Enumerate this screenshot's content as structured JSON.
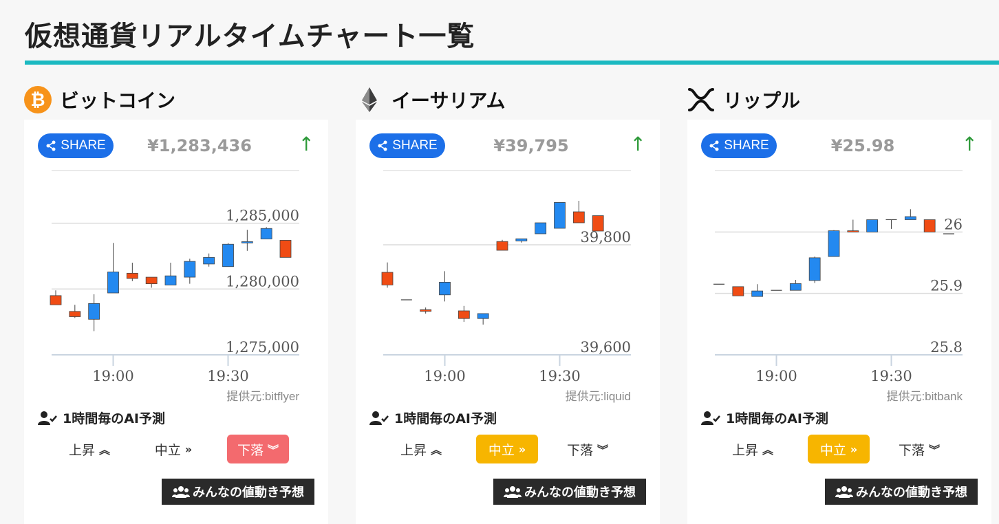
{
  "page": {
    "title": "仮想通貨リアルタイムチャート一覧"
  },
  "labels": {
    "share": "SHARE",
    "ai": "1時間毎のAI予測",
    "rise": "上昇",
    "neutral": "中立",
    "fall": "下落",
    "minna": "みんなの値動き予想"
  },
  "colors": {
    "accent": "#1bb9c1",
    "share": "#1c6fe8",
    "up_candle": "#2389f0",
    "down_candle": "#f04c14",
    "fall_active": "#f36a6e",
    "neutral_active": "#f7b500"
  },
  "coins": [
    {
      "name": "ビットコイン",
      "icon": "bitcoin-icon",
      "price": "¥1,283,436",
      "trend": "↑",
      "provider": "提供元:bitflyer",
      "prediction": "down",
      "chart_data": {
        "type": "candlestick",
        "x_ticks": [
          "19:00",
          "19:30"
        ],
        "y_ticks": [
          "1,285,000",
          "1,280,000",
          "1,275,000"
        ],
        "y_tick_values": [
          1285000,
          1280000,
          1275000
        ],
        "ylim": [
          1275000,
          1289000
        ],
        "candles": [
          {
            "t": "18:45",
            "o": 1279500,
            "h": 1279900,
            "l": 1278800,
            "c": 1278800
          },
          {
            "t": "18:50",
            "o": 1278300,
            "h": 1278800,
            "l": 1277800,
            "c": 1277900
          },
          {
            "t": "18:55",
            "o": 1277700,
            "h": 1279600,
            "l": 1276800,
            "c": 1278900
          },
          {
            "t": "19:00",
            "o": 1279700,
            "h": 1283500,
            "l": 1279700,
            "c": 1281300
          },
          {
            "t": "19:05",
            "o": 1281200,
            "h": 1282000,
            "l": 1280600,
            "c": 1280800
          },
          {
            "t": "19:10",
            "o": 1280900,
            "h": 1280900,
            "l": 1280100,
            "c": 1280400
          },
          {
            "t": "19:15",
            "o": 1280300,
            "h": 1282000,
            "l": 1280300,
            "c": 1281000
          },
          {
            "t": "19:20",
            "o": 1280900,
            "h": 1282300,
            "l": 1280400,
            "c": 1282100
          },
          {
            "t": "19:25",
            "o": 1281900,
            "h": 1282700,
            "l": 1281700,
            "c": 1282400
          },
          {
            "t": "19:30",
            "o": 1281700,
            "h": 1283500,
            "l": 1281700,
            "c": 1283400
          },
          {
            "t": "19:35",
            "o": 1283500,
            "h": 1284500,
            "l": 1282900,
            "c": 1283600
          },
          {
            "t": "19:40",
            "o": 1283800,
            "h": 1284700,
            "l": 1283800,
            "c": 1284600
          },
          {
            "t": "19:45",
            "o": 1283700,
            "h": 1283700,
            "l": 1282400,
            "c": 1282400
          }
        ]
      }
    },
    {
      "name": "イーサリアム",
      "icon": "ethereum-icon",
      "price": "¥39,795",
      "trend": "↑",
      "provider": "提供元:liquid",
      "prediction": "neutral",
      "chart_data": {
        "type": "candlestick",
        "x_ticks": [
          "19:00",
          "19:30"
        ],
        "y_ticks": [
          "39,800",
          "39,600"
        ],
        "y_tick_values": [
          39800,
          39600
        ],
        "ylim": [
          39600,
          39935
        ],
        "candles": [
          {
            "t": "18:45",
            "o": 39750,
            "h": 39768,
            "l": 39722,
            "c": 39727
          },
          {
            "t": "18:50",
            "o": 39700,
            "h": 39700,
            "l": 39700,
            "c": 39700
          },
          {
            "t": "18:55",
            "o": 39682,
            "h": 39686,
            "l": 39675,
            "c": 39679
          },
          {
            "t": "19:00",
            "o": 39709,
            "h": 39752,
            "l": 39697,
            "c": 39732
          },
          {
            "t": "19:05",
            "o": 39680,
            "h": 39689,
            "l": 39660,
            "c": 39666
          },
          {
            "t": "19:10",
            "o": 39666,
            "h": 39675,
            "l": 39655,
            "c": 39675
          },
          {
            "t": "19:15",
            "o": 39806,
            "h": 39809,
            "l": 39790,
            "c": 39790
          },
          {
            "t": "19:20",
            "o": 39807,
            "h": 39811,
            "l": 39804,
            "c": 39811
          },
          {
            "t": "19:25",
            "o": 39820,
            "h": 39840,
            "l": 39820,
            "c": 39840
          },
          {
            "t": "19:30",
            "o": 39830,
            "h": 39877,
            "l": 39830,
            "c": 39877
          },
          {
            "t": "19:35",
            "o": 39860,
            "h": 39880,
            "l": 39840,
            "c": 39840
          },
          {
            "t": "19:40",
            "o": 39853,
            "h": 39853,
            "l": 39825,
            "c": 39825
          }
        ]
      }
    },
    {
      "name": "リップル",
      "icon": "ripple-icon",
      "price": "¥25.98",
      "trend": "↑",
      "provider": "提供元:bitbank",
      "prediction": "neutral",
      "chart_data": {
        "type": "candlestick",
        "x_ticks": [
          "19:00",
          "19:30"
        ],
        "y_ticks": [
          "26",
          "25.9",
          "25.8"
        ],
        "y_tick_values": [
          26,
          25.9,
          25.8
        ],
        "ylim": [
          25.8,
          26.1
        ],
        "candles": [
          {
            "t": "18:45",
            "o": 25.915,
            "h": 25.915,
            "l": 25.915,
            "c": 25.915
          },
          {
            "t": "18:50",
            "o": 25.911,
            "h": 25.911,
            "l": 25.896,
            "c": 25.896
          },
          {
            "t": "18:55",
            "o": 25.895,
            "h": 25.915,
            "l": 25.895,
            "c": 25.904
          },
          {
            "t": "19:00",
            "o": 25.905,
            "h": 25.905,
            "l": 25.905,
            "c": 25.905
          },
          {
            "t": "19:05",
            "o": 25.905,
            "h": 25.922,
            "l": 25.905,
            "c": 25.916
          },
          {
            "t": "19:10",
            "o": 25.921,
            "h": 25.96,
            "l": 25.917,
            "c": 25.958
          },
          {
            "t": "19:15",
            "o": 25.96,
            "h": 26.003,
            "l": 25.96,
            "c": 26.002
          },
          {
            "t": "19:20",
            "o": 26.002,
            "h": 26.02,
            "l": 26.0,
            "c": 26.0
          },
          {
            "t": "19:25",
            "o": 26.0,
            "h": 26.02,
            "l": 26.0,
            "c": 26.02
          },
          {
            "t": "19:30",
            "o": 26.02,
            "h": 26.02,
            "l": 26.005,
            "c": 26.02
          },
          {
            "t": "19:35",
            "o": 26.02,
            "h": 26.037,
            "l": 26.02,
            "c": 26.025
          },
          {
            "t": "19:40",
            "o": 26.02,
            "h": 26.02,
            "l": 26.0,
            "c": 26.0
          },
          {
            "t": "19:45",
            "o": 25.997,
            "h": 25.997,
            "l": 25.997,
            "c": 25.997
          }
        ]
      }
    }
  ]
}
